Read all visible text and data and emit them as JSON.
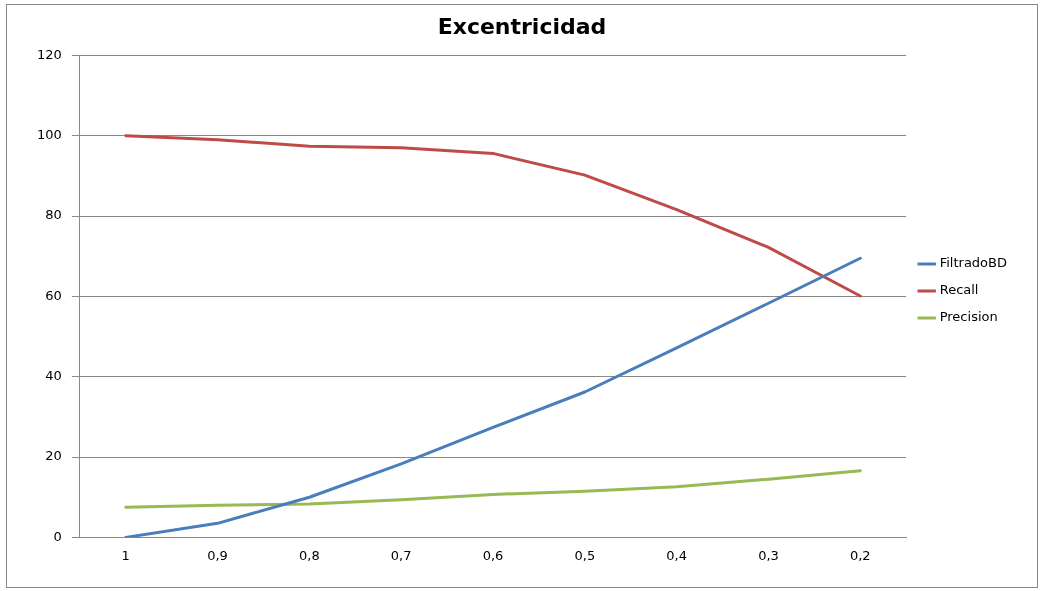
{
  "chart_data": {
    "type": "line",
    "title": "Excentricidad",
    "categories": [
      "1",
      "0,9",
      "0,8",
      "0,7",
      "0,6",
      "0,5",
      "0,4",
      "0,3",
      "0,2"
    ],
    "series": [
      {
        "name": "FiltradoBD",
        "color": "#4a7ebb",
        "values": [
          0,
          3.5,
          10,
          18.3,
          27.4,
          36.2,
          47.2,
          58.3,
          69.5
        ]
      },
      {
        "name": "Recall",
        "color": "#be4b48",
        "values": [
          100,
          99,
          97.4,
          97,
          95.6,
          90.2,
          81.6,
          72.2,
          60.1
        ]
      },
      {
        "name": "Precision",
        "color": "#98b954",
        "values": [
          7.5,
          8,
          8.3,
          9.4,
          10.7,
          11.5,
          12.6,
          14.5,
          16.6
        ]
      }
    ],
    "ylim": [
      0,
      120
    ],
    "yticks": [
      0,
      20,
      40,
      60,
      80,
      100,
      120
    ],
    "grid": "y",
    "legend": "right",
    "marker": "none",
    "line_style": "solid"
  }
}
